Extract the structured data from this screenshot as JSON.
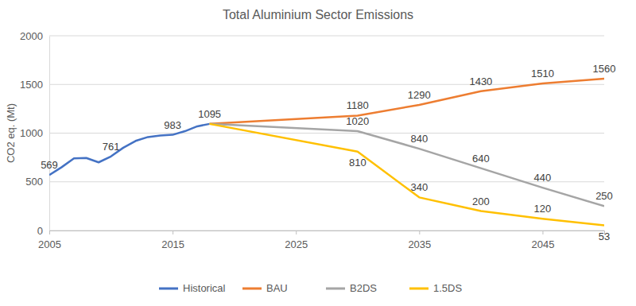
{
  "chart_data": {
    "type": "line",
    "title": "Total Aluminium Sector Emissions",
    "y_label": "CO2 eq. (Mt)",
    "x": [
      2005,
      2006,
      2007,
      2008,
      2009,
      2010,
      2011,
      2012,
      2013,
      2014,
      2015,
      2016,
      2017,
      2018,
      2030,
      2035,
      2040,
      2045,
      2050
    ],
    "series": [
      {
        "name": "Historical",
        "color": "#4472c4",
        "values": [
          569,
          650,
          740,
          745,
          700,
          761,
          850,
          920,
          960,
          975,
          983,
          1020,
          1070,
          1095,
          null,
          null,
          null,
          null,
          null
        ],
        "value_labels": [
          "569",
          null,
          null,
          null,
          null,
          "761",
          null,
          null,
          null,
          null,
          "983",
          null,
          null,
          "1095",
          null,
          null,
          null,
          null,
          null
        ]
      },
      {
        "name": "BAU",
        "color": "#ed7d31",
        "values": [
          null,
          null,
          null,
          null,
          null,
          null,
          null,
          null,
          null,
          null,
          null,
          null,
          null,
          1095,
          1180,
          1290,
          1430,
          1510,
          1560
        ],
        "value_labels": [
          null,
          null,
          null,
          null,
          null,
          null,
          null,
          null,
          null,
          null,
          null,
          null,
          null,
          null,
          "1180",
          "1290",
          "1430",
          "1510",
          "1560"
        ]
      },
      {
        "name": "B2DS",
        "color": "#a5a5a5",
        "values": [
          null,
          null,
          null,
          null,
          null,
          null,
          null,
          null,
          null,
          null,
          null,
          null,
          null,
          1095,
          1020,
          840,
          640,
          440,
          250
        ],
        "value_labels": [
          null,
          null,
          null,
          null,
          null,
          null,
          null,
          null,
          null,
          null,
          null,
          null,
          null,
          null,
          "1020",
          "840",
          "640",
          "440",
          "250"
        ]
      },
      {
        "name": "1.5DS",
        "color": "#ffc000",
        "values": [
          null,
          null,
          null,
          null,
          null,
          null,
          null,
          null,
          null,
          null,
          null,
          null,
          null,
          1095,
          810,
          340,
          200,
          120,
          53
        ],
        "value_labels": [
          null,
          null,
          null,
          null,
          null,
          null,
          null,
          null,
          null,
          null,
          null,
          null,
          null,
          null,
          "810",
          "340",
          "200",
          "120",
          "53"
        ]
      }
    ],
    "xlim": [
      2005,
      2050
    ],
    "xticks": [
      2005,
      2015,
      2025,
      2035,
      2045
    ],
    "ylim": [
      0,
      2000
    ],
    "yticks": [
      0,
      500,
      1000,
      1500,
      2000
    ],
    "grid": true,
    "legend": "bottom",
    "data_labels": true
  }
}
